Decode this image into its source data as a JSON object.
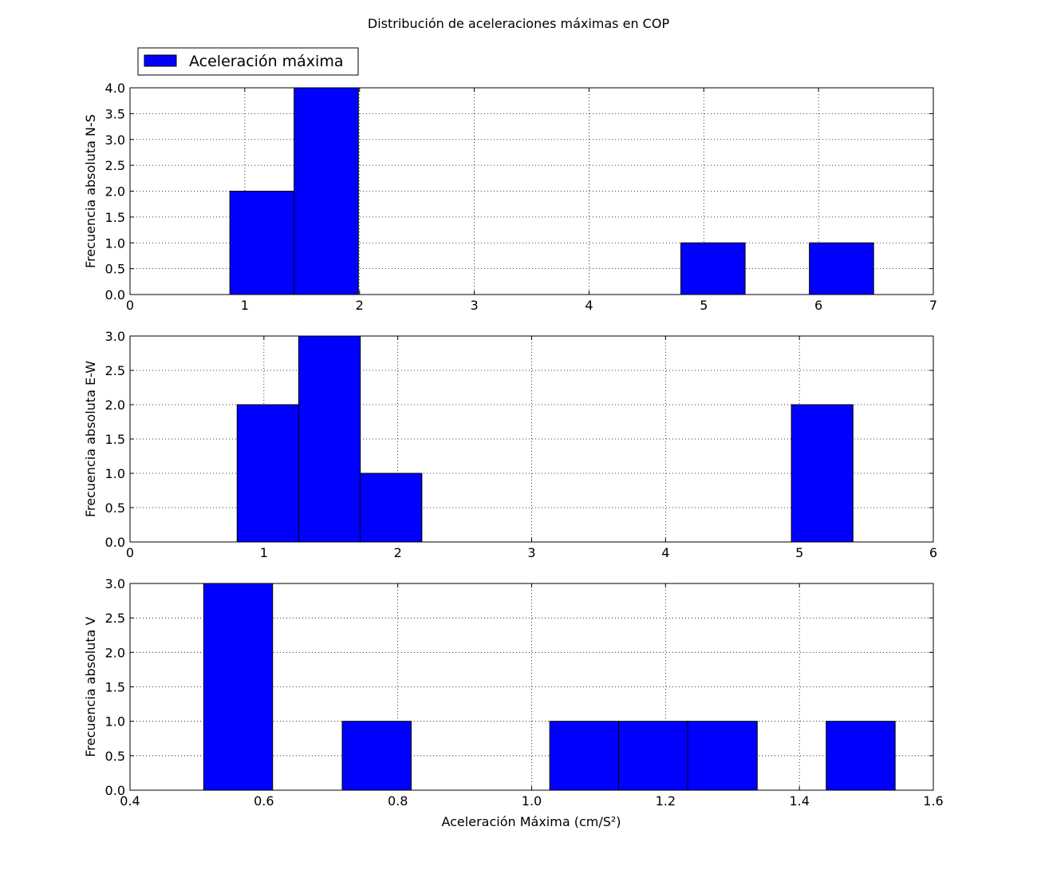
{
  "figure": {
    "title": "Distribución de aceleraciones máximas en COP",
    "legend": {
      "label": "Aceleración máxima",
      "placement": "top-left",
      "color": "#0000ff"
    },
    "xlabel": "Aceleración Máxima (cm/S²)"
  },
  "chart_data": [
    {
      "type": "bar",
      "subtype": "histogram",
      "ylabel": "Frecuencia absoluta N-S",
      "xlim": [
        0,
        7
      ],
      "ylim": [
        0,
        4
      ],
      "xticks": [
        "0",
        "1",
        "2",
        "3",
        "4",
        "5",
        "6",
        "7"
      ],
      "yticks": [
        "0.0",
        "0.5",
        "1.0",
        "1.5",
        "2.0",
        "2.5",
        "3.0",
        "3.5",
        "4.0"
      ],
      "grid": true,
      "color": "#0000ff",
      "bins": [
        {
          "x0": 0.87,
          "x1": 1.43,
          "count": 2
        },
        {
          "x0": 1.43,
          "x1": 1.99,
          "count": 4
        },
        {
          "x0": 4.8,
          "x1": 5.36,
          "count": 1
        },
        {
          "x0": 5.92,
          "x1": 6.48,
          "count": 1
        }
      ]
    },
    {
      "type": "bar",
      "subtype": "histogram",
      "ylabel": "Frecuencia absoluta E-W",
      "xlim": [
        0,
        6
      ],
      "ylim": [
        0,
        3
      ],
      "xticks": [
        "0",
        "1",
        "2",
        "3",
        "4",
        "5",
        "6"
      ],
      "yticks": [
        "0.0",
        "0.5",
        "1.0",
        "1.5",
        "2.0",
        "2.5",
        "3.0"
      ],
      "grid": true,
      "color": "#0000ff",
      "bins": [
        {
          "x0": 0.8,
          "x1": 1.26,
          "count": 2
        },
        {
          "x0": 1.26,
          "x1": 1.72,
          "count": 3
        },
        {
          "x0": 1.72,
          "x1": 2.18,
          "count": 1
        },
        {
          "x0": 4.94,
          "x1": 5.4,
          "count": 2
        }
      ]
    },
    {
      "type": "bar",
      "subtype": "histogram",
      "ylabel": "Frecuencia absoluta V",
      "xlim": [
        0.4,
        1.6
      ],
      "ylim": [
        0,
        3
      ],
      "xticks": [
        "0.4",
        "0.6",
        "0.8",
        "1.0",
        "1.2",
        "1.4",
        "1.6"
      ],
      "yticks": [
        "0.0",
        "0.5",
        "1.0",
        "1.5",
        "2.0",
        "2.5",
        "3.0"
      ],
      "grid": true,
      "color": "#0000ff",
      "bins": [
        {
          "x0": 0.51,
          "x1": 0.613,
          "count": 3
        },
        {
          "x0": 0.717,
          "x1": 0.82,
          "count": 1
        },
        {
          "x0": 1.027,
          "x1": 1.13,
          "count": 1
        },
        {
          "x0": 1.13,
          "x1": 1.233,
          "count": 1
        },
        {
          "x0": 1.233,
          "x1": 1.337,
          "count": 1
        },
        {
          "x0": 1.44,
          "x1": 1.543,
          "count": 1
        }
      ]
    }
  ]
}
